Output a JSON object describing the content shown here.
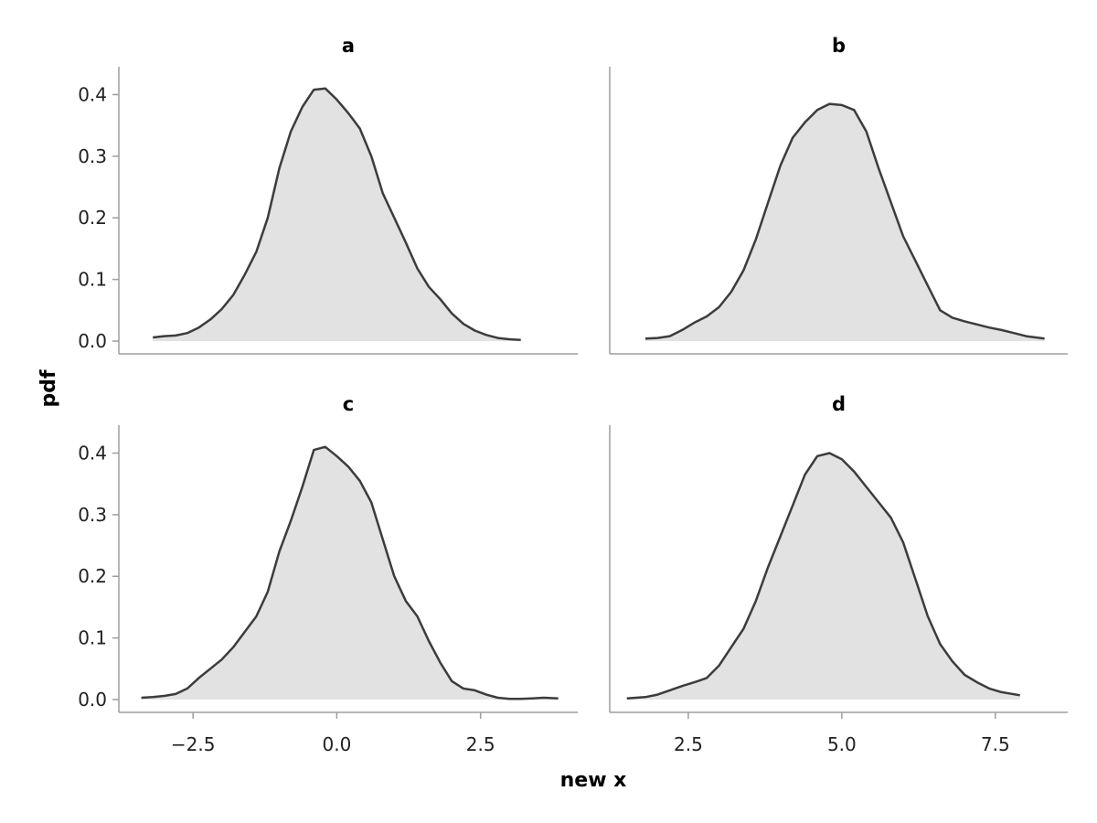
{
  "chart_data": {
    "type": "area",
    "xlabel": "new x",
    "ylabel": "pdf",
    "ylim": [
      0,
      0.42
    ],
    "y_ticks": [
      0.0,
      0.1,
      0.2,
      0.3,
      0.4
    ],
    "y_tick_labels": [
      "0.0",
      "0.1",
      "0.2",
      "0.3",
      "0.4"
    ],
    "grid": false,
    "colors": {
      "fill": "#e2e2e2",
      "line": "#3c3c3c",
      "axis": "#9e9e9e"
    },
    "columns": [
      {
        "xlim": [
          -3.6,
          4.0
        ],
        "x_ticks": [
          -2.5,
          0.0,
          2.5
        ],
        "x_tick_labels": [
          "−2.5",
          "0.0",
          "2.5"
        ]
      },
      {
        "xlim": [
          1.4,
          8.5
        ],
        "x_ticks": [
          2.5,
          5.0,
          7.5
        ],
        "x_tick_labels": [
          "2.5",
          "5.0",
          "7.5"
        ]
      }
    ],
    "panels": [
      {
        "title": "a",
        "row": 0,
        "col": 0,
        "x": [
          -3.2,
          -3.0,
          -2.8,
          -2.6,
          -2.4,
          -2.2,
          -2.0,
          -1.8,
          -1.6,
          -1.4,
          -1.2,
          -1.0,
          -0.8,
          -0.6,
          -0.4,
          -0.2,
          0.0,
          0.2,
          0.4,
          0.6,
          0.8,
          1.0,
          1.2,
          1.4,
          1.6,
          1.8,
          2.0,
          2.2,
          2.4,
          2.6,
          2.8,
          3.0,
          3.2
        ],
        "y": [
          0.006,
          0.008,
          0.009,
          0.013,
          0.022,
          0.035,
          0.052,
          0.075,
          0.108,
          0.145,
          0.2,
          0.28,
          0.34,
          0.38,
          0.408,
          0.41,
          0.392,
          0.37,
          0.345,
          0.3,
          0.24,
          0.2,
          0.16,
          0.118,
          0.088,
          0.068,
          0.045,
          0.028,
          0.017,
          0.01,
          0.005,
          0.003,
          0.002
        ]
      },
      {
        "title": "b",
        "row": 0,
        "col": 1,
        "x": [
          1.8,
          2.0,
          2.2,
          2.4,
          2.6,
          2.8,
          3.0,
          3.2,
          3.4,
          3.6,
          3.8,
          4.0,
          4.2,
          4.4,
          4.6,
          4.8,
          5.0,
          5.2,
          5.4,
          5.6,
          5.8,
          6.0,
          6.2,
          6.4,
          6.6,
          6.8,
          7.0,
          7.2,
          7.4,
          7.6,
          7.8,
          8.0,
          8.3
        ],
        "y": [
          0.004,
          0.005,
          0.008,
          0.018,
          0.03,
          0.04,
          0.055,
          0.08,
          0.115,
          0.165,
          0.225,
          0.285,
          0.33,
          0.355,
          0.375,
          0.385,
          0.383,
          0.375,
          0.34,
          0.28,
          0.225,
          0.17,
          0.13,
          0.09,
          0.05,
          0.038,
          0.032,
          0.027,
          0.022,
          0.018,
          0.013,
          0.008,
          0.004
        ]
      },
      {
        "title": "c",
        "row": 1,
        "col": 0,
        "x": [
          -3.4,
          -3.2,
          -3.0,
          -2.8,
          -2.6,
          -2.4,
          -2.2,
          -2.0,
          -1.8,
          -1.6,
          -1.4,
          -1.2,
          -1.0,
          -0.8,
          -0.6,
          -0.4,
          -0.2,
          0.0,
          0.2,
          0.4,
          0.6,
          0.8,
          1.0,
          1.2,
          1.4,
          1.6,
          1.8,
          2.0,
          2.2,
          2.4,
          2.6,
          2.8,
          3.0,
          3.2,
          3.4,
          3.6,
          3.85
        ],
        "y": [
          0.003,
          0.004,
          0.006,
          0.009,
          0.018,
          0.035,
          0.05,
          0.065,
          0.085,
          0.11,
          0.135,
          0.175,
          0.24,
          0.29,
          0.345,
          0.405,
          0.41,
          0.395,
          0.378,
          0.355,
          0.32,
          0.26,
          0.2,
          0.16,
          0.135,
          0.095,
          0.06,
          0.03,
          0.018,
          0.015,
          0.008,
          0.003,
          0.001,
          0.001,
          0.002,
          0.003,
          0.002
        ]
      },
      {
        "title": "d",
        "row": 1,
        "col": 1,
        "x": [
          1.5,
          1.8,
          2.0,
          2.2,
          2.4,
          2.6,
          2.8,
          3.0,
          3.2,
          3.4,
          3.6,
          3.8,
          4.0,
          4.2,
          4.4,
          4.6,
          4.8,
          5.0,
          5.2,
          5.4,
          5.6,
          5.8,
          6.0,
          6.2,
          6.4,
          6.6,
          6.8,
          7.0,
          7.2,
          7.4,
          7.6,
          7.9
        ],
        "y": [
          0.002,
          0.004,
          0.008,
          0.015,
          0.022,
          0.028,
          0.035,
          0.055,
          0.085,
          0.115,
          0.16,
          0.215,
          0.265,
          0.315,
          0.365,
          0.395,
          0.4,
          0.39,
          0.37,
          0.345,
          0.32,
          0.295,
          0.255,
          0.195,
          0.135,
          0.09,
          0.062,
          0.04,
          0.028,
          0.018,
          0.012,
          0.007
        ]
      }
    ]
  }
}
